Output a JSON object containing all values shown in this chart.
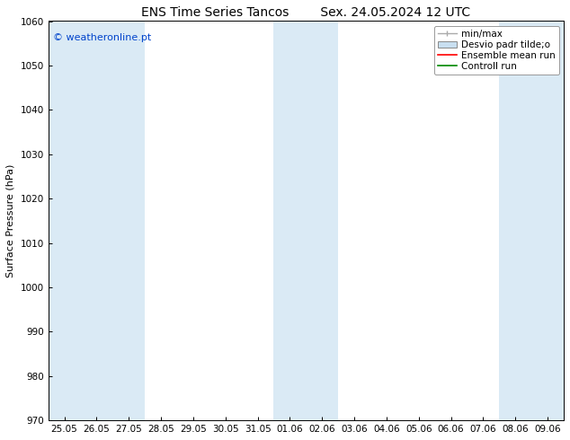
{
  "title_left": "ENS Time Series Tancos",
  "title_right": "Sex. 24.05.2024 12 UTC",
  "ylabel": "Surface Pressure (hPa)",
  "ylim": [
    970,
    1060
  ],
  "yticks": [
    970,
    980,
    990,
    1000,
    1010,
    1020,
    1030,
    1040,
    1050,
    1060
  ],
  "xlabels": [
    "25.05",
    "26.05",
    "27.05",
    "28.05",
    "29.05",
    "30.05",
    "31.05",
    "01.06",
    "02.06",
    "03.06",
    "04.06",
    "05.06",
    "06.06",
    "07.06",
    "08.06",
    "09.06"
  ],
  "shaded_columns": [
    0,
    1,
    2,
    7,
    8,
    14,
    15
  ],
  "shaded_color": "#daeaf5",
  "bg_color": "#ffffff",
  "watermark": "© weatheronline.pt",
  "watermark_color": "#0044cc",
  "legend_labels": [
    "min/max",
    "Desvio padr tilde;o",
    "Ensemble mean run",
    "Controll run"
  ],
  "legend_colors": [
    "#aaaaaa",
    "#c8dff0",
    "#ff0000",
    "#008800"
  ],
  "title_fontsize": 10,
  "axis_label_fontsize": 8,
  "tick_fontsize": 7.5,
  "legend_fontsize": 7.5,
  "watermark_fontsize": 8
}
